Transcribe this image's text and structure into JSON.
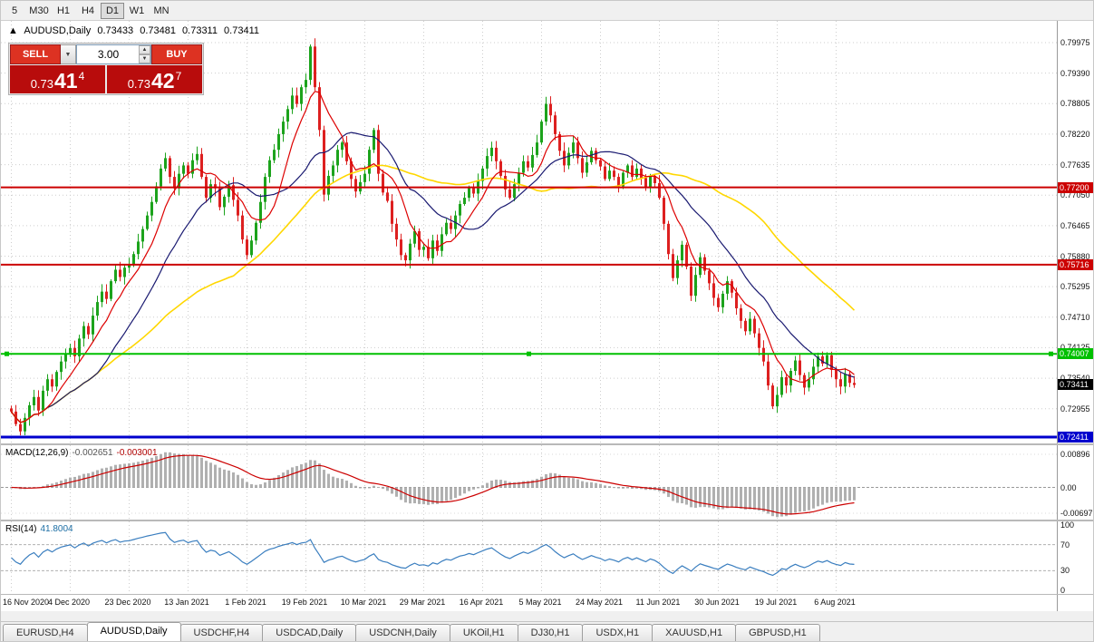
{
  "toolbar": {
    "timeframes": [
      {
        "label": "5",
        "active": false
      },
      {
        "label": "M30",
        "active": false
      },
      {
        "label": "H1",
        "active": false
      },
      {
        "label": "H4",
        "active": false
      },
      {
        "label": "D1",
        "active": true
      },
      {
        "label": "W1",
        "active": false
      },
      {
        "label": "MN",
        "active": false
      }
    ]
  },
  "chart": {
    "symbol_line": {
      "arrow": "▲",
      "title": "AUDUSD,Daily",
      "open": "0.73433",
      "high": "0.73481",
      "low": "0.73311",
      "close": "0.73411"
    },
    "trade_panel": {
      "sell_label": "SELL",
      "buy_label": "BUY",
      "lot_size": "3.00",
      "sell_price_prefix": "0.73",
      "sell_price_main": "41",
      "sell_price_sup": "4",
      "buy_price_prefix": "0.73",
      "buy_price_main": "42",
      "buy_price_sup": "7"
    },
    "price_axis_labels": [
      "0.79975",
      "0.79390",
      "0.78805",
      "0.78220",
      "0.77635",
      "0.77050",
      "0.76465",
      "0.75880",
      "0.75295",
      "0.74710",
      "0.74125",
      "0.73540",
      "0.72955"
    ],
    "levels": [
      {
        "label": "0.77200",
        "value": 0.772,
        "color": "#cc0000",
        "width": 2,
        "selected": false
      },
      {
        "label": "0.75716",
        "value": 0.75716,
        "color": "#cc0000",
        "width": 2,
        "selected": false
      },
      {
        "label": "0.74007",
        "value": 0.74007,
        "color": "#00c000",
        "width": 2,
        "selected": true
      },
      {
        "label": "0.72411",
        "value": 0.72411,
        "color": "#0000cd",
        "width": 3,
        "selected": false
      }
    ],
    "current_price": {
      "label": "0.73411",
      "value": 0.73411,
      "color": "#000000"
    }
  },
  "chart_data": {
    "type": "candlestick",
    "symbol": "AUDUSD",
    "timeframe": "Daily",
    "y_range": [
      0.721,
      0.8025
    ],
    "y_ticks": [
      0.79975,
      0.7939,
      0.78805,
      0.7822,
      0.77635,
      0.7705,
      0.76465,
      0.7588,
      0.75295,
      0.7471,
      0.74125,
      0.7354,
      0.72955
    ],
    "x_labels": [
      "16 Nov 2020",
      "4 Dec 2020",
      "23 Dec 2020",
      "13 Jan 2021",
      "1 Feb 2021",
      "19 Feb 2021",
      "10 Mar 2021",
      "29 Mar 2021",
      "16 Apr 2021",
      "5 May 2021",
      "24 May 2021",
      "11 Jun 2021",
      "30 Jun 2021",
      "19 Jul 2021",
      "6 Aug 2021"
    ],
    "x_label_indices": [
      0,
      13,
      26,
      39,
      52,
      65,
      78,
      91,
      104,
      117,
      130,
      143,
      156,
      169,
      182
    ],
    "closes": [
      0.729,
      0.7266,
      0.7252,
      0.7278,
      0.7302,
      0.7318,
      0.7292,
      0.733,
      0.7352,
      0.7338,
      0.7366,
      0.7386,
      0.74,
      0.7412,
      0.7396,
      0.743,
      0.7454,
      0.7438,
      0.7474,
      0.75,
      0.752,
      0.7506,
      0.754,
      0.7562,
      0.7548,
      0.7566,
      0.7572,
      0.7592,
      0.7616,
      0.764,
      0.7666,
      0.7692,
      0.7722,
      0.7756,
      0.7776,
      0.774,
      0.7718,
      0.7746,
      0.7762,
      0.7746,
      0.7772,
      0.7784,
      0.774,
      0.77,
      0.7726,
      0.7718,
      0.7682,
      0.7702,
      0.7724,
      0.7696,
      0.7666,
      0.762,
      0.759,
      0.7618,
      0.7652,
      0.7692,
      0.774,
      0.7772,
      0.7792,
      0.7822,
      0.7846,
      0.787,
      0.7896,
      0.788,
      0.7912,
      0.7926,
      0.799,
      0.7912,
      0.783,
      0.7706,
      0.7742,
      0.7762,
      0.7792,
      0.7806,
      0.777,
      0.7736,
      0.7712,
      0.773,
      0.7746,
      0.7792,
      0.783,
      0.7746,
      0.771,
      0.7694,
      0.765,
      0.762,
      0.759,
      0.758,
      0.7612,
      0.7636,
      0.76,
      0.7606,
      0.7584,
      0.7618,
      0.7598,
      0.763,
      0.7652,
      0.764,
      0.7666,
      0.7688,
      0.77,
      0.772,
      0.7708,
      0.7732,
      0.7756,
      0.778,
      0.7796,
      0.777,
      0.7742,
      0.7716,
      0.77,
      0.7726,
      0.7748,
      0.777,
      0.7758,
      0.7782,
      0.7806,
      0.7846,
      0.788,
      0.7858,
      0.7822,
      0.779,
      0.7762,
      0.7786,
      0.7806,
      0.7776,
      0.7748,
      0.7768,
      0.779,
      0.7772,
      0.776,
      0.7736,
      0.7752,
      0.774,
      0.7722,
      0.7748,
      0.7762,
      0.774,
      0.7756,
      0.7738,
      0.772,
      0.7742,
      0.7728,
      0.77,
      0.765,
      0.7592,
      0.7546,
      0.758,
      0.761,
      0.7568,
      0.7512,
      0.7552,
      0.7586,
      0.756,
      0.7536,
      0.7508,
      0.749,
      0.7516,
      0.754,
      0.7518,
      0.7488,
      0.7464,
      0.7444,
      0.7468,
      0.744,
      0.7412,
      0.7386,
      0.734,
      0.73,
      0.7322,
      0.7356,
      0.734,
      0.7368,
      0.7388,
      0.736,
      0.7336,
      0.7352,
      0.7376,
      0.7396,
      0.7382,
      0.7398,
      0.737,
      0.7352,
      0.7338,
      0.7362,
      0.7345,
      0.7341
    ],
    "colors": {
      "up": "#1ca31c",
      "down": "#dd2020",
      "ma_fast": "#dd0000",
      "ma_mid": "#191970",
      "ma_slow": "#ffd700",
      "macd_hist": "#b0b0b0",
      "macd_signal": "#cc0000",
      "rsi_line": "#3a7ebf"
    }
  },
  "macd": {
    "header": "MACD(12,26,9)",
    "value_main": "-0.002651",
    "value_signal": "-0.003001",
    "axis_labels": [
      {
        "label": "0.00896",
        "value": 0.00896
      },
      {
        "label": "0.00",
        "value": 0
      },
      {
        "label": "-0.00697",
        "value": -0.00697
      }
    ]
  },
  "rsi": {
    "header": "RSI(14)",
    "value": "41.8004",
    "axis_labels": [
      {
        "label": "100",
        "value": 100
      },
      {
        "label": "70",
        "value": 70
      },
      {
        "label": "30",
        "value": 30
      },
      {
        "label": "0",
        "value": 0
      }
    ],
    "level_lines": [
      70,
      30
    ]
  },
  "tabs": [
    {
      "label": "EURUSD,H4",
      "active": false
    },
    {
      "label": "AUDUSD,Daily",
      "active": true
    },
    {
      "label": "USDCHF,H4",
      "active": false
    },
    {
      "label": "USDCAD,Daily",
      "active": false
    },
    {
      "label": "USDCNH,Daily",
      "active": false
    },
    {
      "label": "UKOil,H1",
      "active": false
    },
    {
      "label": "DJ30,H1",
      "active": false
    },
    {
      "label": "USDX,H1",
      "active": false
    },
    {
      "label": "XAUUSD,H1",
      "active": false
    },
    {
      "label": "GBPUSD,H1",
      "active": false
    }
  ]
}
